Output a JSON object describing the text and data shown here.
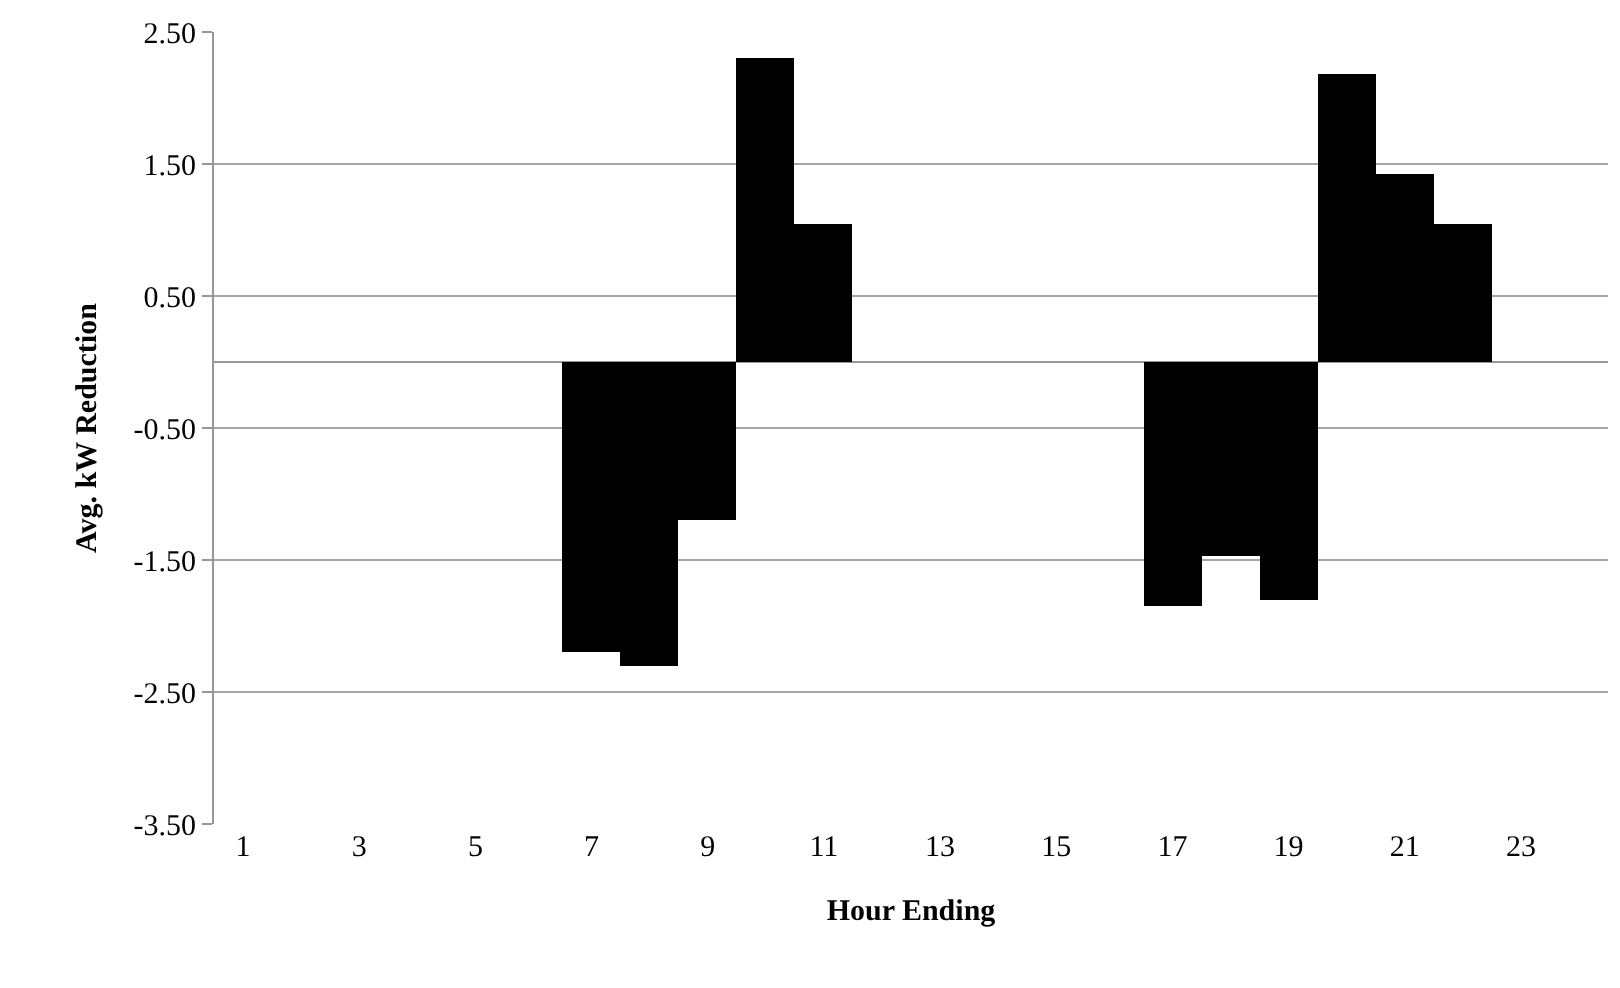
{
  "chart_data": {
    "type": "bar",
    "xlabel": "Hour Ending",
    "ylabel": "Avg. kW Reduction",
    "x": [
      1,
      2,
      3,
      4,
      5,
      6,
      7,
      8,
      9,
      10,
      11,
      12,
      13,
      14,
      15,
      16,
      17,
      18,
      19,
      20,
      21,
      22,
      23,
      24
    ],
    "values": [
      0,
      0,
      0,
      0,
      0,
      0,
      -2.19,
      -2.31,
      -1.19,
      2.3,
      1.05,
      0,
      0,
      0,
      0,
      0,
      -1.85,
      -1.47,
      -1.81,
      2.18,
      1.42,
      1.05,
      0,
      0
    ],
    "color": "#000000",
    "xlim": [
      0.5,
      24.5
    ],
    "xticks": [
      1,
      3,
      5,
      7,
      9,
      11,
      13,
      15,
      17,
      19,
      21,
      23
    ],
    "ylim": [
      -3.5,
      2.5
    ],
    "yticks": [
      {
        "value": 2.5,
        "label": "2.50"
      },
      {
        "value": 1.5,
        "label": "1.50"
      },
      {
        "value": 0.5,
        "label": "0.50"
      },
      {
        "value": -0.5,
        "label": "-0.50"
      },
      {
        "value": -1.5,
        "label": "-1.50"
      },
      {
        "value": -2.5,
        "label": "-2.50"
      },
      {
        "value": -3.5,
        "label": "-3.50"
      }
    ],
    "grid": "y",
    "legend": false
  }
}
